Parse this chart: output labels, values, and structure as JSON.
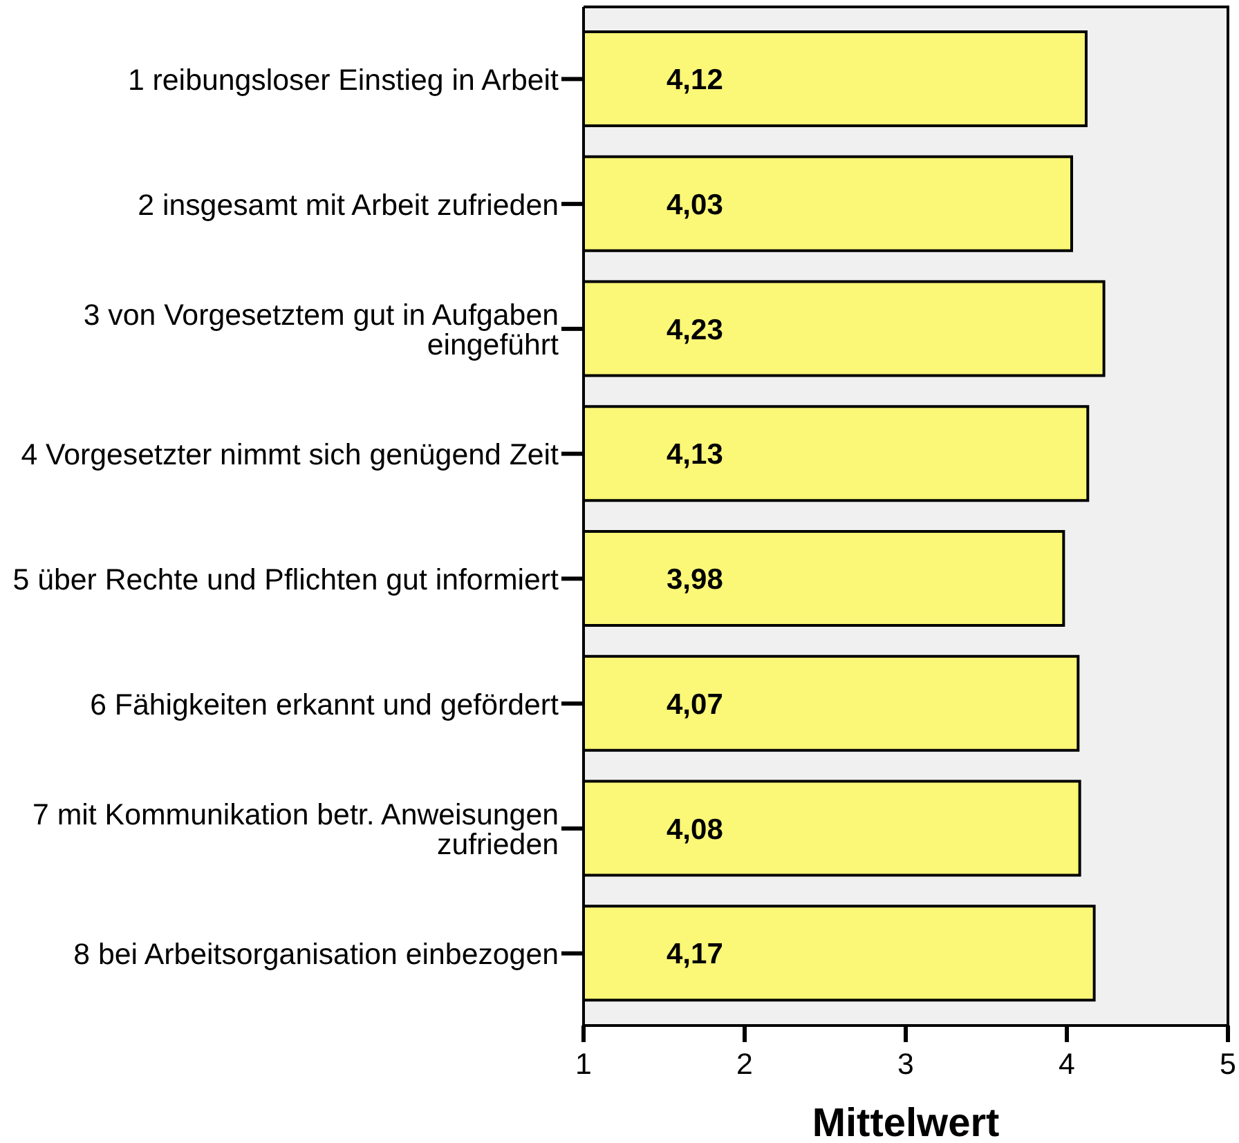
{
  "chart_data": {
    "type": "bar",
    "orientation": "horizontal",
    "xlabel": "Mittelwert",
    "categories": [
      "1 reibungsloser Einstieg in Arbeit",
      "2 insgesamt mit Arbeit zufrieden",
      "3 von Vorgesetztem gut in Aufgaben eingeführt",
      "4 Vorgesetzter nimmt sich genügend Zeit",
      "5 über Rechte und Pflichten gut informiert",
      "6 Fähigkeiten erkannt und gefördert",
      "7 mit Kommunikation betr. Anweisungen zufrieden",
      "8 bei Arbeitsorganisation einbezogen"
    ],
    "values": [
      4.12,
      4.03,
      4.23,
      4.13,
      3.98,
      4.07,
      4.08,
      4.17
    ],
    "value_labels": [
      "4,12",
      "4,03",
      "4,23",
      "4,13",
      "3,98",
      "4,07",
      "4,08",
      "4,17"
    ],
    "color": "#fbf777",
    "xlim": [
      1,
      5
    ],
    "xticks": [
      1,
      2,
      3,
      4,
      5
    ]
  }
}
